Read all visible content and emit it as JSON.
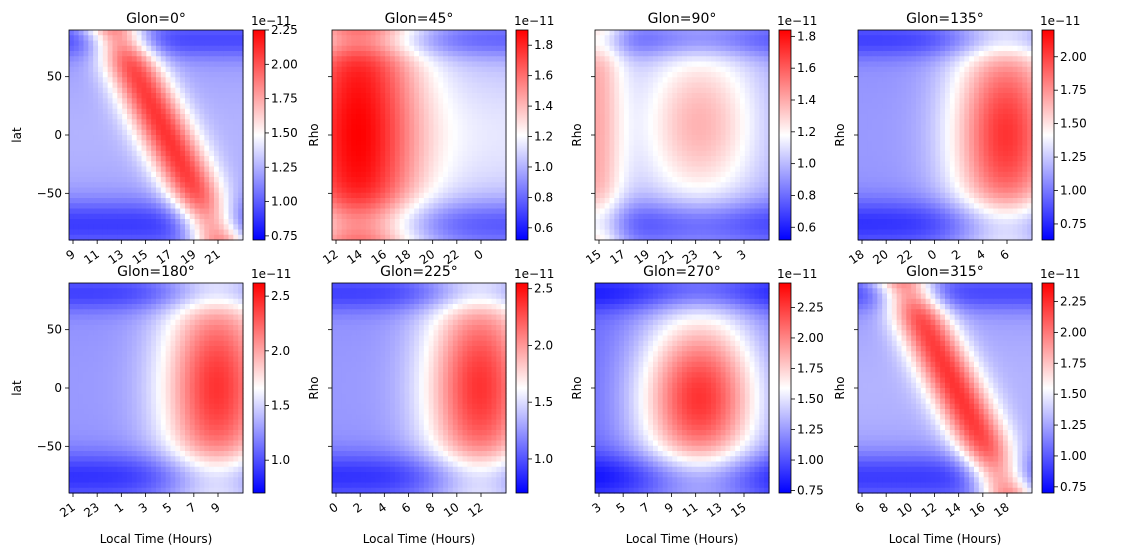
{
  "figure": {
    "colormap": "bwr",
    "colors": {
      "low": "#0000ff",
      "mid": "#ffffff",
      "high": "#ff0000"
    }
  },
  "chart_data": [
    {
      "type": "heatmap",
      "title": "Glon=0°",
      "ylabel": "lat",
      "xlabel": "",
      "colorbar_label": "",
      "colorbar_exponent": "1e−11",
      "x_ticks": [
        "9",
        "11",
        "13",
        "15",
        "17",
        "19",
        "21"
      ],
      "y_ticks": [
        "50",
        "0",
        "−50"
      ],
      "colorbar_ticks": [
        "2.25",
        "2.00",
        "1.75",
        "1.50",
        "1.25",
        "1.00",
        "0.75"
      ],
      "colorbar_range": [
        0.72,
        2.25
      ],
      "pattern": "diag"
    },
    {
      "type": "heatmap",
      "title": "Glon=45°",
      "ylabel": "",
      "xlabel": "",
      "colorbar_label": "Rho",
      "colorbar_exponent": "1e−11",
      "x_ticks": [
        "12",
        "14",
        "16",
        "18",
        "20",
        "22",
        "0"
      ],
      "y_ticks": [],
      "colorbar_ticks": [
        "1.8",
        "1.6",
        "1.4",
        "1.2",
        "1.0",
        "0.8",
        "0.6"
      ],
      "colorbar_range": [
        0.52,
        1.9
      ],
      "pattern": "left"
    },
    {
      "type": "heatmap",
      "title": "Glon=90°",
      "ylabel": "",
      "xlabel": "",
      "colorbar_label": "Rho",
      "colorbar_exponent": "1e−11",
      "x_ticks": [
        "15",
        "17",
        "19",
        "21",
        "23",
        "1",
        "3"
      ],
      "y_ticks": [],
      "colorbar_ticks": [
        "1.8",
        "1.6",
        "1.4",
        "1.2",
        "1.0",
        "0.8",
        "0.6"
      ],
      "colorbar_range": [
        0.52,
        1.84
      ],
      "pattern": "mid"
    },
    {
      "type": "heatmap",
      "title": "Glon=135°",
      "ylabel": "",
      "xlabel": "",
      "colorbar_label": "Rho",
      "colorbar_exponent": "1e−11",
      "x_ticks": [
        "18",
        "20",
        "22",
        "0",
        "2",
        "4",
        "6"
      ],
      "y_ticks": [],
      "colorbar_ticks": [
        "2.00",
        "1.75",
        "1.50",
        "1.25",
        "1.00",
        "0.75"
      ],
      "colorbar_range": [
        0.63,
        2.2
      ],
      "pattern": "right"
    },
    {
      "type": "heatmap",
      "title": "Glon=180°",
      "ylabel": "lat",
      "xlabel": "Local Time (Hours)",
      "colorbar_label": "",
      "colorbar_exponent": "1e−11",
      "x_ticks": [
        "21",
        "23",
        "1",
        "3",
        "5",
        "7",
        "9"
      ],
      "y_ticks": [
        "50",
        "0",
        "−50"
      ],
      "colorbar_ticks": [
        "2.5",
        "2.0",
        "1.5",
        "1.0"
      ],
      "colorbar_range": [
        0.7,
        2.62
      ],
      "pattern": "right"
    },
    {
      "type": "heatmap",
      "title": "Glon=225°",
      "ylabel": "",
      "xlabel": "Local Time (Hours)",
      "colorbar_label": "Rho",
      "colorbar_exponent": "1e−11",
      "x_ticks": [
        "0",
        "2",
        "4",
        "6",
        "8",
        "10",
        "12"
      ],
      "y_ticks": [],
      "colorbar_ticks": [
        "2.5",
        "2.0",
        "1.5",
        "1.0"
      ],
      "colorbar_range": [
        0.7,
        2.55
      ],
      "pattern": "right"
    },
    {
      "type": "heatmap",
      "title": "Glon=270°",
      "ylabel": "",
      "xlabel": "Local Time (Hours)",
      "colorbar_label": "Rho",
      "colorbar_exponent": "1e−11",
      "x_ticks": [
        "3",
        "5",
        "7",
        "9",
        "11",
        "13",
        "15"
      ],
      "y_ticks": [],
      "colorbar_ticks": [
        "2.25",
        "2.00",
        "1.75",
        "1.50",
        "1.25",
        "1.00",
        "0.75"
      ],
      "colorbar_range": [
        0.73,
        2.45
      ],
      "pattern": "center"
    },
    {
      "type": "heatmap",
      "title": "Glon=315°",
      "ylabel": "",
      "xlabel": "Local Time (Hours)",
      "colorbar_label": "Rho",
      "colorbar_exponent": "1e−11",
      "x_ticks": [
        "6",
        "8",
        "10",
        "12",
        "14",
        "16",
        "18"
      ],
      "y_ticks": [],
      "colorbar_ticks": [
        "2.25",
        "2.00",
        "1.75",
        "1.50",
        "1.25",
        "1.00",
        "0.75"
      ],
      "colorbar_range": [
        0.7,
        2.4
      ],
      "pattern": "diag"
    }
  ]
}
